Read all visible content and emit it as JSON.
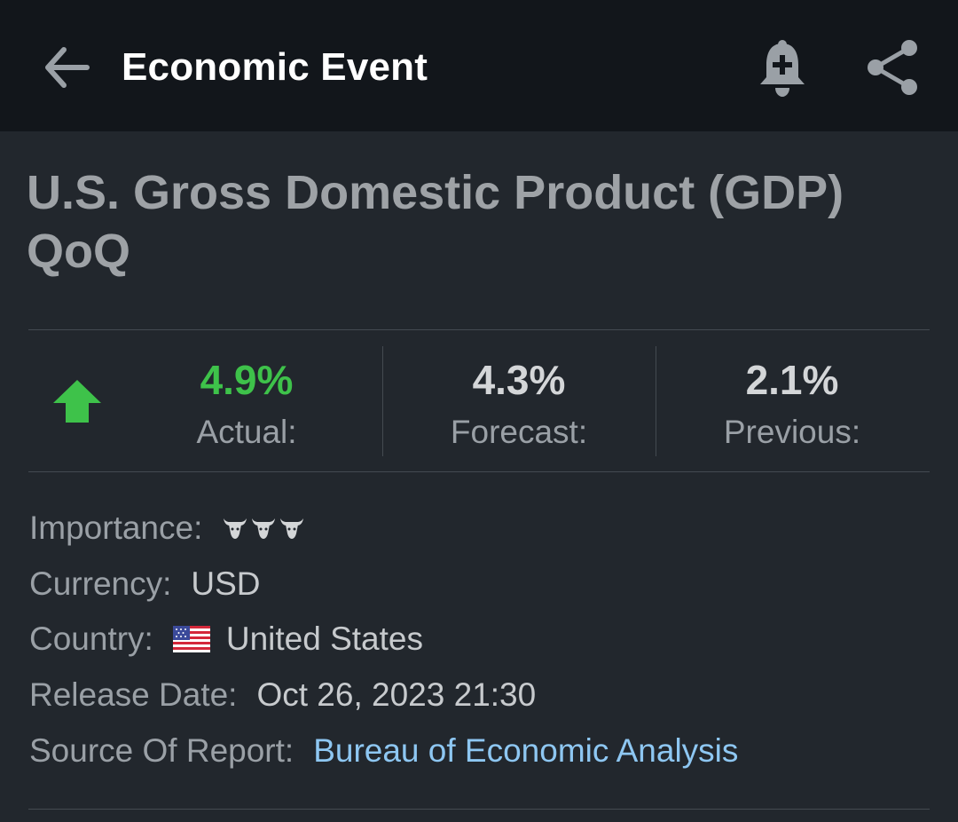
{
  "appbar": {
    "title": "Economic Event",
    "icons": {
      "back": "arrow-left-icon",
      "alert": "bell-plus-icon",
      "share": "share-icon"
    }
  },
  "event": {
    "title": "U.S. Gross Domestic Product (GDP) QoQ",
    "trend_icon": "arrow-up-icon",
    "trend_color": "#3ec24a"
  },
  "stats": {
    "actual": {
      "value": "4.9%",
      "label": "Actual:"
    },
    "forecast": {
      "value": "4.3%",
      "label": "Forecast:"
    },
    "previous": {
      "value": "2.1%",
      "label": "Previous:"
    }
  },
  "details": {
    "importance": {
      "label": "Importance:",
      "bulls": 3,
      "icon": "bull-icon"
    },
    "currency": {
      "label": "Currency:",
      "value": "USD"
    },
    "country": {
      "label": "Country:",
      "value": "United States",
      "flag_icon": "us-flag-icon"
    },
    "release_date": {
      "label": "Release Date:",
      "value": "Oct 26, 2023 21:30"
    },
    "source": {
      "label": "Source Of Report:",
      "value": "Bureau of Economic Analysis"
    }
  },
  "colors": {
    "appbar_bg": "#12161b",
    "page_bg": "#22272d",
    "positive": "#3ec24a",
    "link": "#8ec7f2"
  }
}
